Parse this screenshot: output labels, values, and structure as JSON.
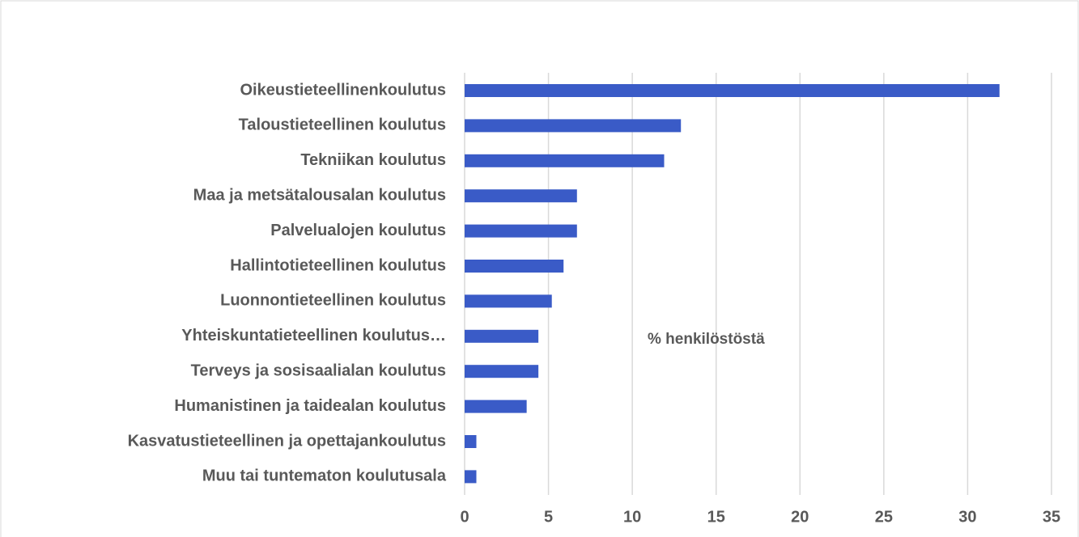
{
  "chart_data": {
    "type": "bar",
    "orientation": "horizontal",
    "annotation": "% henkilöstöstä",
    "categories": [
      "Oikeustieteellinenkoulutus",
      "Taloustieteellinen koulutus",
      "Tekniikan koulutus",
      "Maa ja metsätalousalan koulutus",
      "Palvelualojen koulutus",
      "Hallintotieteellinen koulutus",
      "Luonnontieteellinen koulutus",
      "Yhteiskuntatieteellinen koulutus…",
      "Terveys ja sosisaalialan koulutus",
      "Humanistinen ja taidealan koulutus",
      "Kasvatustieteellinen ja opettajankoulutus",
      "Muu tai tuntematon koulutusala"
    ],
    "values": [
      31.9,
      12.9,
      11.9,
      6.7,
      6.7,
      5.9,
      5.2,
      4.4,
      4.4,
      3.7,
      0.7,
      0.7
    ],
    "color": "#3a5bc7",
    "xlim": [
      0,
      35
    ],
    "xticks": [
      0,
      5,
      10,
      15,
      20,
      25,
      30,
      35
    ],
    "grid": true
  }
}
